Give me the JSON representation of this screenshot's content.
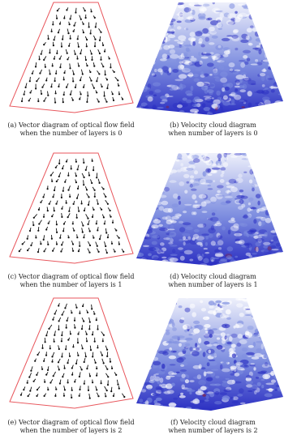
{
  "figure": {
    "rows": [
      {
        "vector_caption": [
          "(a) Vector diagram of optical flow field",
          "when the number of layers is 0"
        ],
        "cloud_caption": [
          "(b) Velocity cloud diagram",
          "when number of layers is 0"
        ]
      },
      {
        "vector_caption": [
          "(c) Vector diagram of optical flow field",
          "when the number of layers is 1"
        ],
        "cloud_caption": [
          "(d) Velocity cloud diagram",
          "when number of layers is 1"
        ]
      },
      {
        "vector_caption": [
          "(e) Vector diagram of optical flow field",
          "when the number of layers is 2"
        ],
        "cloud_caption": [
          "(f) Velocity cloud diagram",
          "when number of layers is 2"
        ]
      }
    ]
  },
  "colors": {
    "boundary": "#e8565c",
    "arrow": "#111111",
    "cloud_light": "#eef0fb",
    "cloud_mid": "#7f8fe0",
    "cloud_dark": "#2b2fc2",
    "cloud_hot": "#8a1f3a"
  }
}
